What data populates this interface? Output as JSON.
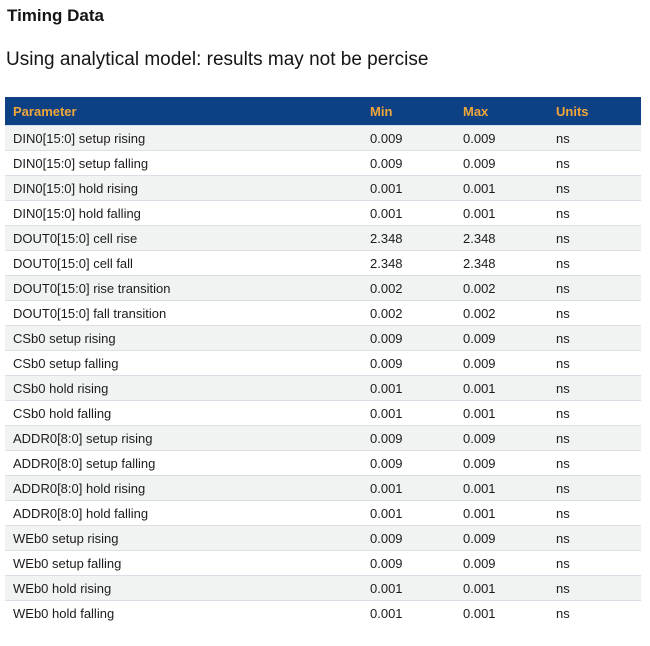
{
  "page": {
    "title": "Timing Data",
    "subtitle": "Using analytical model: results may not be percise"
  },
  "table": {
    "columns": [
      "Parameter",
      "Min",
      "Max",
      "Units"
    ],
    "rows": [
      {
        "parameter": "DIN0[15:0] setup rising",
        "min": "0.009",
        "max": "0.009",
        "units": "ns"
      },
      {
        "parameter": "DIN0[15:0] setup falling",
        "min": "0.009",
        "max": "0.009",
        "units": "ns"
      },
      {
        "parameter": "DIN0[15:0] hold rising",
        "min": "0.001",
        "max": "0.001",
        "units": "ns"
      },
      {
        "parameter": "DIN0[15:0] hold falling",
        "min": "0.001",
        "max": "0.001",
        "units": "ns"
      },
      {
        "parameter": "DOUT0[15:0] cell rise",
        "min": "2.348",
        "max": "2.348",
        "units": "ns"
      },
      {
        "parameter": "DOUT0[15:0] cell fall",
        "min": "2.348",
        "max": "2.348",
        "units": "ns"
      },
      {
        "parameter": "DOUT0[15:0] rise transition",
        "min": "0.002",
        "max": "0.002",
        "units": "ns"
      },
      {
        "parameter": "DOUT0[15:0] fall transition",
        "min": "0.002",
        "max": "0.002",
        "units": "ns"
      },
      {
        "parameter": "CSb0 setup rising",
        "min": "0.009",
        "max": "0.009",
        "units": "ns"
      },
      {
        "parameter": "CSb0 setup falling",
        "min": "0.009",
        "max": "0.009",
        "units": "ns"
      },
      {
        "parameter": "CSb0 hold rising",
        "min": "0.001",
        "max": "0.001",
        "units": "ns"
      },
      {
        "parameter": "CSb0 hold falling",
        "min": "0.001",
        "max": "0.001",
        "units": "ns"
      },
      {
        "parameter": "ADDR0[8:0] setup rising",
        "min": "0.009",
        "max": "0.009",
        "units": "ns"
      },
      {
        "parameter": "ADDR0[8:0] setup falling",
        "min": "0.009",
        "max": "0.009",
        "units": "ns"
      },
      {
        "parameter": "ADDR0[8:0] hold rising",
        "min": "0.001",
        "max": "0.001",
        "units": "ns"
      },
      {
        "parameter": "ADDR0[8:0] hold falling",
        "min": "0.001",
        "max": "0.001",
        "units": "ns"
      },
      {
        "parameter": "WEb0 setup rising",
        "min": "0.009",
        "max": "0.009",
        "units": "ns"
      },
      {
        "parameter": "WEb0 setup falling",
        "min": "0.009",
        "max": "0.009",
        "units": "ns"
      },
      {
        "parameter": "WEb0 hold rising",
        "min": "0.001",
        "max": "0.001",
        "units": "ns"
      },
      {
        "parameter": "WEb0 hold falling",
        "min": "0.001",
        "max": "0.001",
        "units": "ns"
      }
    ]
  },
  "colors": {
    "header_bg": "#0e4183",
    "header_text": "#f0a63a",
    "row_alt_bg": "#f1f2f2",
    "row_border": "#dbe0e8",
    "text_color": "#1c1c1c"
  }
}
